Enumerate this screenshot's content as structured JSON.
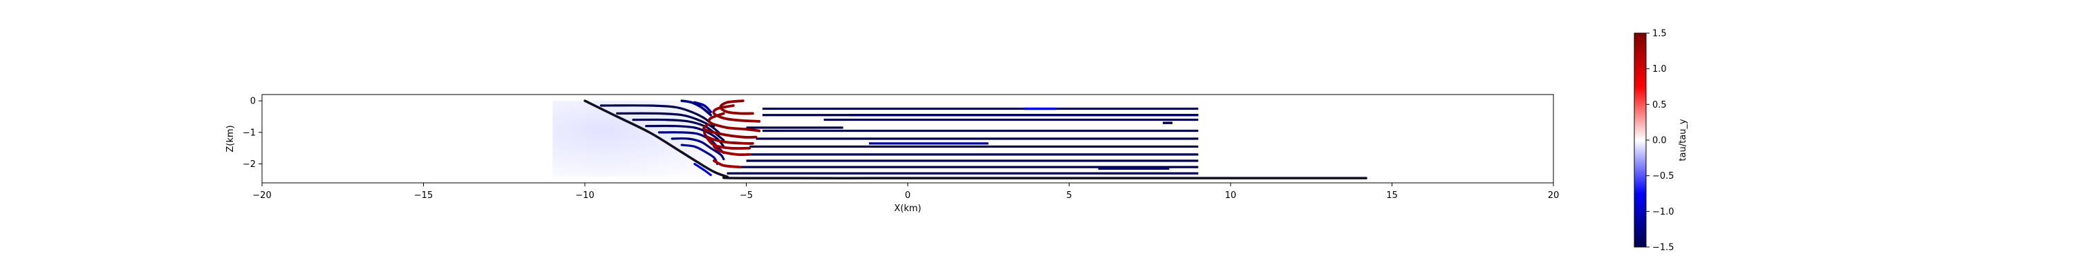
{
  "chart_data": [
    {
      "type": "scatter",
      "xlabel": "X(km)",
      "ylabel": "Z(km)",
      "xlim": [
        -20,
        20
      ],
      "ylim": [
        -2.6,
        0.2
      ],
      "xticks": [
        -20,
        -15,
        -10,
        -5,
        0,
        5,
        10,
        15,
        20
      ],
      "yticks": [
        0,
        -1,
        -2
      ],
      "grid": false,
      "fault": {
        "color": "#111122",
        "x": [
          -10.0,
          -9.0,
          -8.0,
          -7.2,
          -6.5,
          -6.0,
          -5.6,
          -5.2,
          0.0,
          5.0,
          10.0,
          14.2
        ],
        "z": [
          0.0,
          -0.5,
          -1.0,
          -1.5,
          -1.95,
          -2.25,
          -2.4,
          -2.45,
          -2.45,
          -2.45,
          -2.45,
          -2.45
        ]
      },
      "fractures_left": [
        {
          "x": [
            -9.5,
            -8.0,
            -7.2,
            -6.7,
            -6.3,
            -6.0
          ],
          "z": [
            -0.15,
            -0.15,
            -0.2,
            -0.35,
            -0.55,
            -0.8
          ],
          "value": -1.5
        },
        {
          "x": [
            -9.0,
            -7.8,
            -7.0,
            -6.5,
            -6.1,
            -5.8
          ],
          "z": [
            -0.4,
            -0.4,
            -0.45,
            -0.6,
            -0.8,
            -1.05
          ],
          "value": -1.5
        },
        {
          "x": [
            -8.5,
            -7.5,
            -6.8,
            -6.3,
            -6.0,
            -5.7
          ],
          "z": [
            -0.6,
            -0.6,
            -0.65,
            -0.8,
            -1.0,
            -1.25
          ],
          "value": -1.5
        },
        {
          "x": [
            -8.1,
            -7.2,
            -6.6,
            -6.2,
            -5.9,
            -5.7
          ],
          "z": [
            -0.8,
            -0.8,
            -0.85,
            -1.0,
            -1.2,
            -1.45
          ],
          "value": -1.4
        },
        {
          "x": [
            -7.7,
            -7.0,
            -6.5,
            -6.1,
            -5.9,
            -5.7
          ],
          "z": [
            -1.0,
            -1.0,
            -1.05,
            -1.25,
            -1.45,
            -1.65
          ],
          "value": -1.3
        },
        {
          "x": [
            -7.3,
            -6.8,
            -6.4,
            -6.1,
            -5.8,
            -5.7
          ],
          "z": [
            -1.2,
            -1.2,
            -1.3,
            -1.5,
            -1.7,
            -1.85
          ],
          "value": -1.3
        },
        {
          "x": [
            -7.0,
            -6.6,
            -6.3,
            -6.0,
            -5.9
          ],
          "z": [
            -1.4,
            -1.45,
            -1.6,
            -1.8,
            -2.0
          ],
          "value": -1.2
        },
        {
          "x": [
            -6.6,
            -6.3,
            -6.1
          ],
          "z": [
            -2.0,
            -2.2,
            -2.35
          ],
          "value": -0.8
        }
      ],
      "fractures_thrust": [
        {
          "x": [
            -7.0,
            -6.7,
            -6.4,
            -6.1
          ],
          "z": [
            0.0,
            -0.05,
            -0.2,
            -0.45
          ],
          "value": -1.3
        },
        {
          "x": [
            -6.6,
            -6.3,
            -6.1
          ],
          "z": [
            -0.05,
            -0.15,
            -0.35
          ],
          "value": -1.2
        }
      ],
      "fractures_mid": [
        {
          "x": [
            -5.1,
            -5.6,
            -5.8,
            -5.6,
            -5.2,
            -4.8
          ],
          "z": [
            0.0,
            -0.05,
            -0.2,
            -0.35,
            -0.4,
            -0.4
          ],
          "value": 1.4
        },
        {
          "x": [
            -5.4,
            -5.9,
            -6.0,
            -5.7,
            -5.2,
            -4.6
          ],
          "z": [
            -0.15,
            -0.25,
            -0.4,
            -0.55,
            -0.62,
            -0.65
          ],
          "value": 1.4
        },
        {
          "x": [
            -5.7,
            -6.1,
            -6.1,
            -5.6,
            -5.0,
            -4.6
          ],
          "z": [
            -0.4,
            -0.55,
            -0.7,
            -0.85,
            -0.9,
            -0.95
          ],
          "value": 1.4
        },
        {
          "x": [
            -6.2,
            -6.3,
            -5.8,
            -5.1,
            -4.7
          ],
          "z": [
            -0.75,
            -0.9,
            -1.05,
            -1.15,
            -1.15
          ],
          "value": 1.4
        },
        {
          "x": [
            -6.3,
            -6.2,
            -5.7,
            -5.0,
            -4.8
          ],
          "z": [
            -1.0,
            -1.15,
            -1.3,
            -1.35,
            -1.35
          ],
          "value": 1.4
        },
        {
          "x": [
            -6.2,
            -6.0,
            -5.5,
            -4.9
          ],
          "z": [
            -1.2,
            -1.4,
            -1.5,
            -1.5
          ],
          "value": 1.3
        },
        {
          "x": [
            -6.0,
            -5.8,
            -5.3,
            -4.9
          ],
          "z": [
            -1.45,
            -1.6,
            -1.7,
            -1.7
          ],
          "value": 1.3
        },
        {
          "x": [
            -6.0,
            -5.7,
            -5.2
          ],
          "z": [
            -1.9,
            -2.05,
            -2.1
          ],
          "value": 1.3
        }
      ],
      "layers": [
        {
          "x": [
            -4.5,
            9.0
          ],
          "z": -0.25,
          "value": -1.5
        },
        {
          "x": [
            -4.5,
            9.0
          ],
          "z": -0.45,
          "value": -1.5
        },
        {
          "x": [
            -2.6,
            9.0
          ],
          "z": -0.6,
          "value": -1.5
        },
        {
          "x": [
            -5.0,
            -2.0
          ],
          "z": -0.85,
          "value": -1.5
        },
        {
          "x": [
            -4.5,
            9.0
          ],
          "z": -0.95,
          "value": -1.5
        },
        {
          "x": [
            -4.7,
            9.0
          ],
          "z": -1.2,
          "value": -1.5
        },
        {
          "x": [
            -1.2,
            2.5
          ],
          "z": -1.35,
          "value": -1.2
        },
        {
          "x": [
            -4.9,
            9.0
          ],
          "z": -1.45,
          "value": -1.5
        },
        {
          "x": [
            -5.0,
            9.0
          ],
          "z": -1.7,
          "value": -1.5
        },
        {
          "x": [
            -5.0,
            9.0
          ],
          "z": -1.9,
          "value": -1.5
        },
        {
          "x": [
            -5.2,
            9.0
          ],
          "z": -2.1,
          "value": -1.5
        },
        {
          "x": [
            -5.6,
            9.0
          ],
          "z": -2.3,
          "value": -1.5
        },
        {
          "x": [
            5.9,
            8.1
          ],
          "z": -2.15,
          "value": -1.3
        }
      ],
      "layer_highlights": [
        {
          "x": [
            3.6,
            4.6
          ],
          "z": -0.25,
          "value": -0.9
        },
        {
          "x": [
            -1.8,
            9.0
          ],
          "z": -0.45,
          "value": -1.3
        },
        {
          "x": [
            7.9,
            8.2
          ],
          "z": -0.7,
          "value": -1.5
        }
      ],
      "background_field": {
        "x": [
          -11.0,
          -4.6
        ],
        "z": [
          -2.4,
          0.0
        ],
        "value": -0.2
      },
      "colorbar": {
        "label": "tau/tau_y",
        "min": -1.5,
        "max": 1.5,
        "ticks": [
          "1.5",
          "1.0",
          "0.5",
          "0.0",
          "−0.5",
          "−1.0",
          "−1.5"
        ],
        "tick_values": [
          1.5,
          1.0,
          0.5,
          0.0,
          -0.5,
          -1.0,
          -1.5
        ],
        "colors": [
          "#00004c",
          "#0000ff",
          "#ffffff",
          "#ff0000",
          "#7f0000"
        ]
      }
    }
  ]
}
